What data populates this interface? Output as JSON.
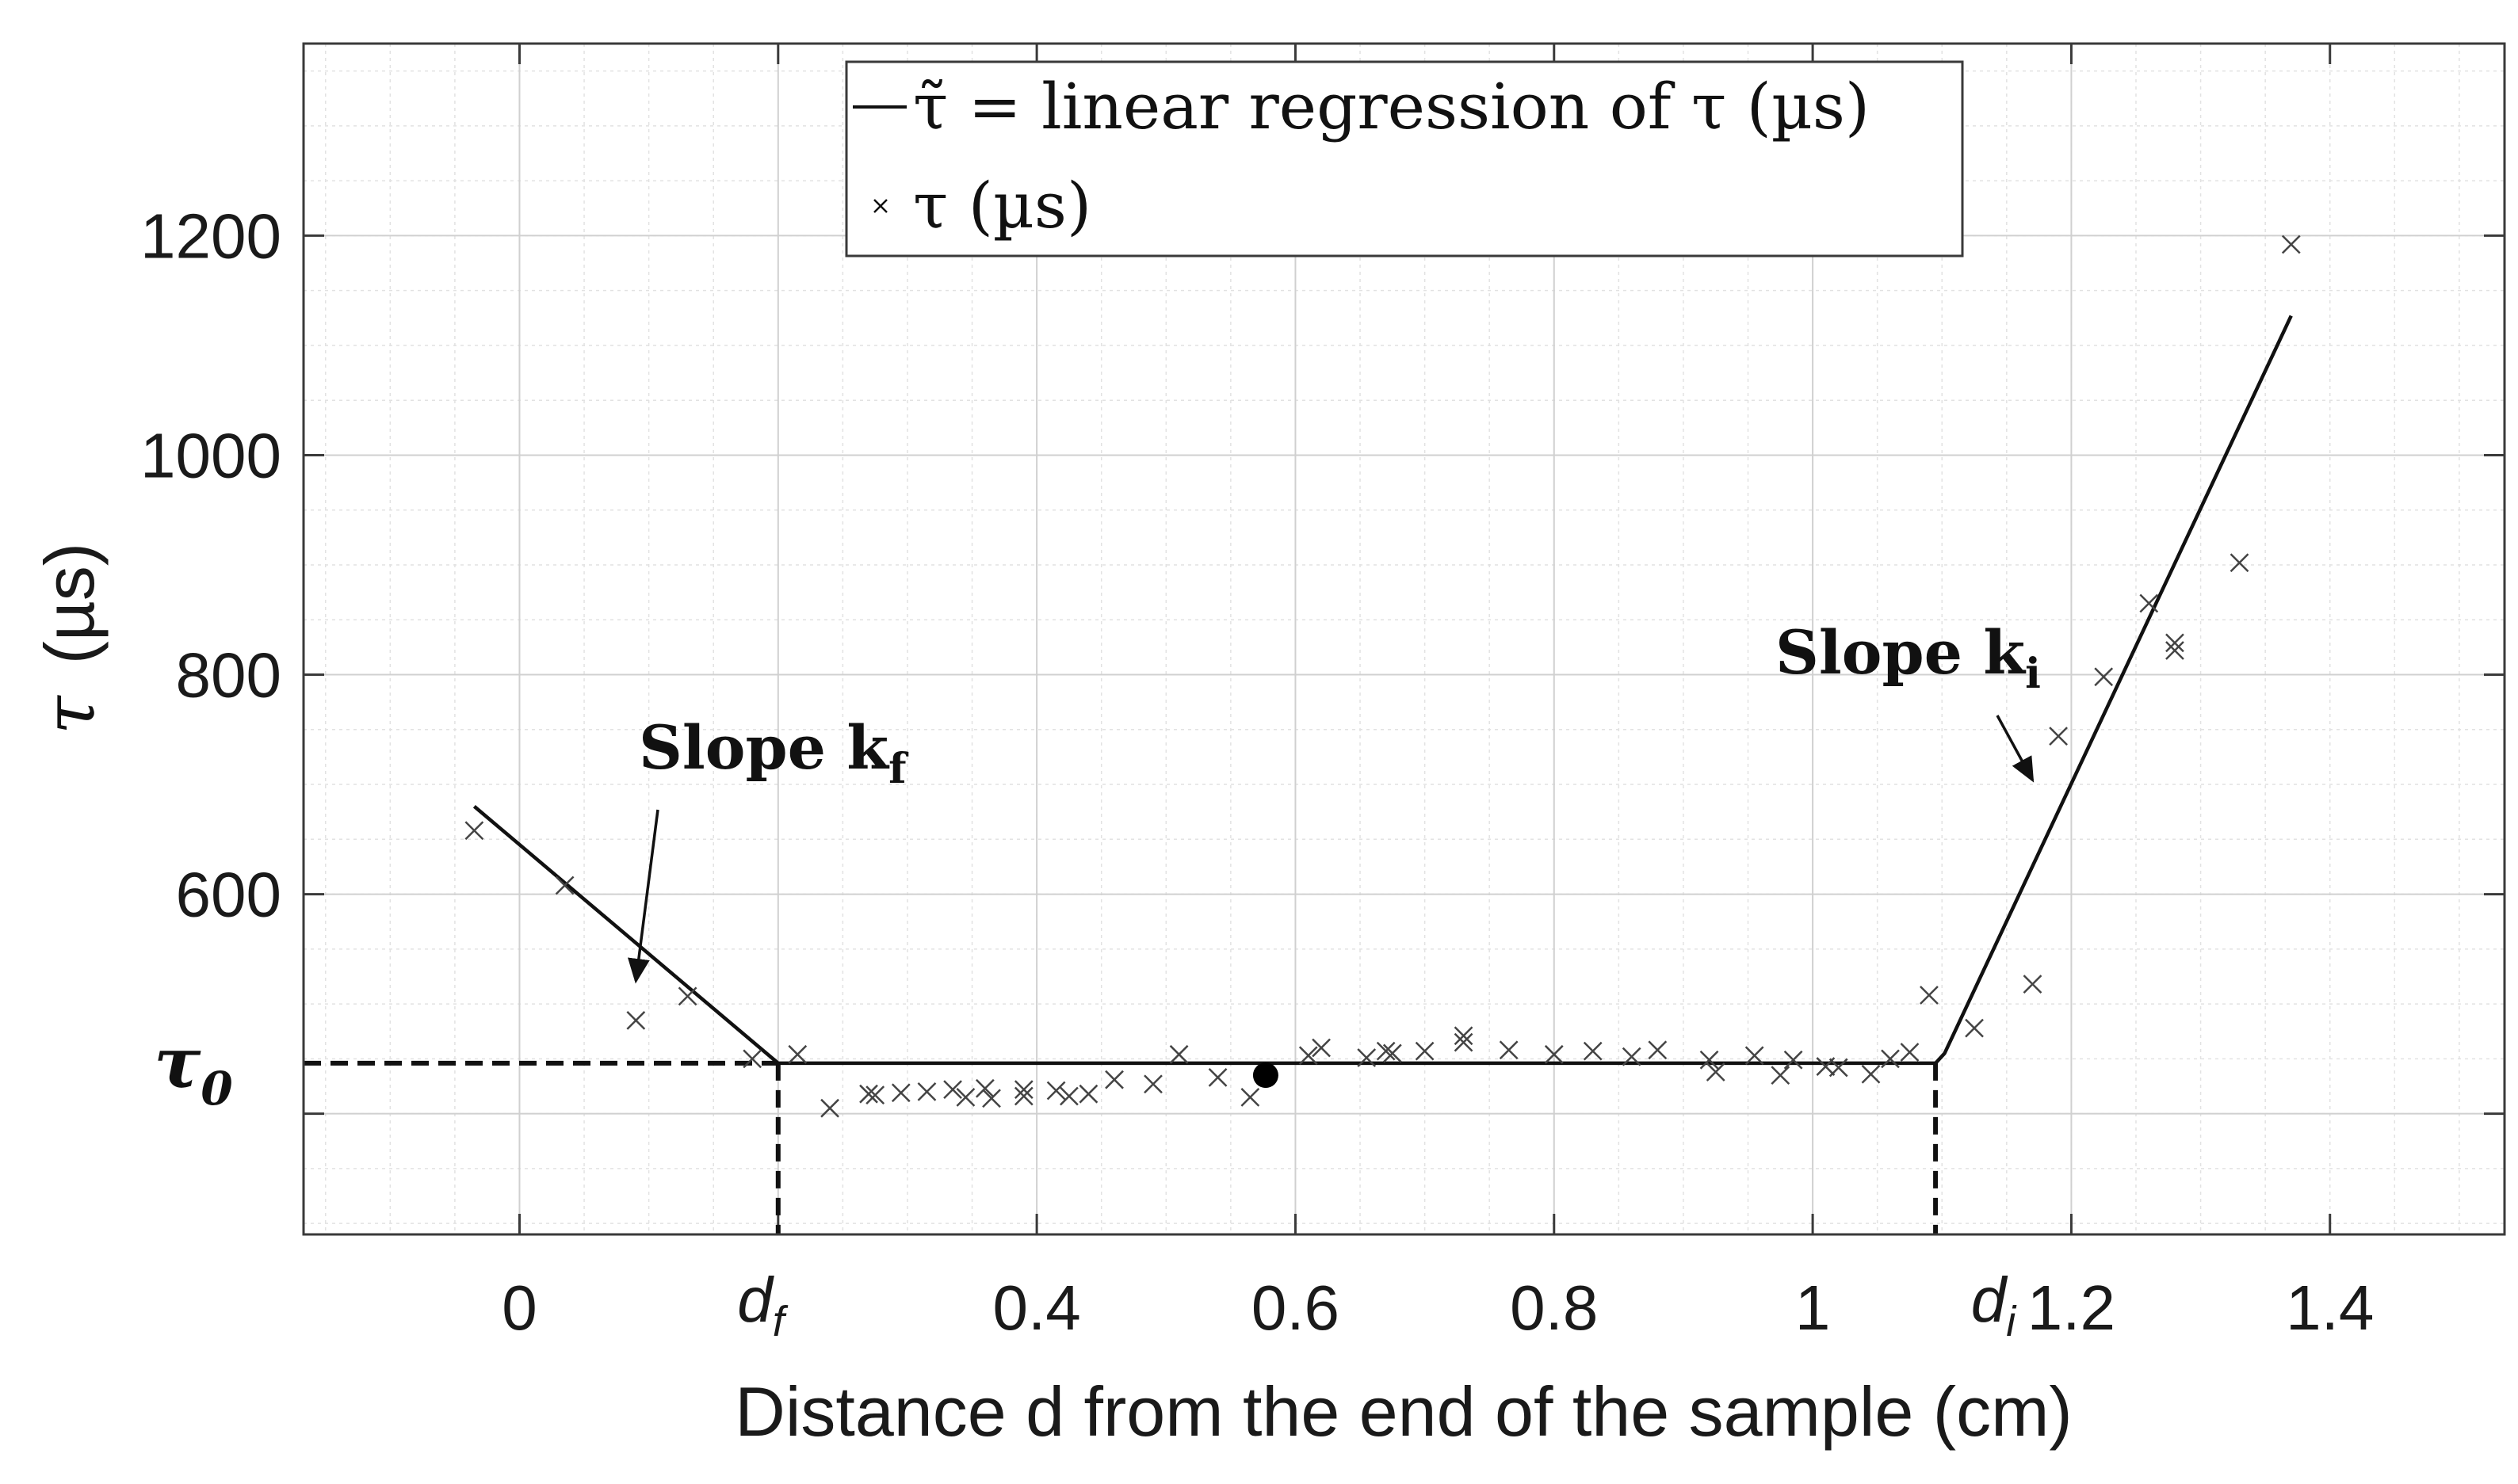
{
  "chart_data": {
    "type": "scatter",
    "xlabel": "Distance d from the end of the sample (cm)",
    "ylabel_symbol": "τ",
    "ylabel_unit": "(µs)",
    "xlim": [
      -0.167,
      1.535
    ],
    "ylim": [
      290,
      1375
    ],
    "x_ticks": [
      {
        "value": 0,
        "label": "0"
      },
      {
        "value": 0.4,
        "label": "0.4"
      },
      {
        "value": 0.6,
        "label": "0.6"
      },
      {
        "value": 0.8,
        "label": "0.8"
      },
      {
        "value": 1.0,
        "label": "1"
      },
      {
        "value": 1.2,
        "label": "1.2"
      },
      {
        "value": 1.4,
        "label": "1.4"
      }
    ],
    "y_ticks": [
      {
        "value": 600,
        "label": "600"
      },
      {
        "value": 800,
        "label": "800"
      },
      {
        "value": 1000,
        "label": "1000"
      },
      {
        "value": 1200,
        "label": "1200"
      }
    ],
    "gridlines": true,
    "legend": {
      "placement": "top-center",
      "entries": [
        {
          "marker": "line",
          "label": "τ̃ = linear regression of τ (µs)"
        },
        {
          "marker": "x",
          "label": "τ (µs)"
        }
      ]
    },
    "tau0": {
      "value": 446,
      "label_main": "τ",
      "label_sub": "0"
    },
    "df": {
      "value": 0.2,
      "label_main": "d",
      "label_sub": "f"
    },
    "di": {
      "value": 1.095,
      "label_main": "d",
      "label_sub": "i"
    },
    "regression_line": {
      "x": [
        -0.035,
        0.2,
        1.095,
        1.102,
        1.37
      ],
      "y": [
        680,
        446,
        446,
        455,
        1127
      ]
    },
    "scatter_points": {
      "x": [
        -0.035,
        0.035,
        0.09,
        0.13,
        0.18,
        0.215,
        0.24,
        0.27,
        0.275,
        0.295,
        0.315,
        0.335,
        0.345,
        0.36,
        0.365,
        0.39,
        0.39,
        0.415,
        0.425,
        0.44,
        0.46,
        0.49,
        0.51,
        0.54,
        0.565,
        0.61,
        0.62,
        0.655,
        0.67,
        0.675,
        0.7,
        0.73,
        0.73,
        0.765,
        0.8,
        0.83,
        0.86,
        0.88,
        0.92,
        0.925,
        0.955,
        0.975,
        0.985,
        1.01,
        1.02,
        1.045,
        1.06,
        1.075,
        1.09,
        1.125,
        1.17,
        1.19,
        1.225,
        1.26,
        1.28,
        1.28,
        1.33,
        1.37
      ],
      "y": [
        658,
        608,
        485,
        507,
        450,
        454,
        405,
        418,
        417,
        419,
        420,
        422,
        415,
        423,
        414,
        422,
        416,
        421,
        416,
        418,
        431,
        427,
        454,
        433,
        415,
        453,
        460,
        451,
        457,
        455,
        457,
        465,
        471,
        458,
        454,
        457,
        452,
        458,
        449,
        438,
        453,
        435,
        449,
        443,
        442,
        436,
        450,
        456,
        508,
        478,
        518,
        744,
        798,
        865,
        822,
        829,
        902,
        1192
      ]
    },
    "highlight_point": {
      "x": 0.577,
      "y": 435
    },
    "annotations": [
      {
        "text_main": "Slope k",
        "text_sub": "f",
        "arrow_to": [
          0.09,
          521
        ]
      },
      {
        "text_main": "Slope k",
        "text_sub": "i",
        "arrow_to": [
          1.17,
          704
        ]
      }
    ]
  }
}
